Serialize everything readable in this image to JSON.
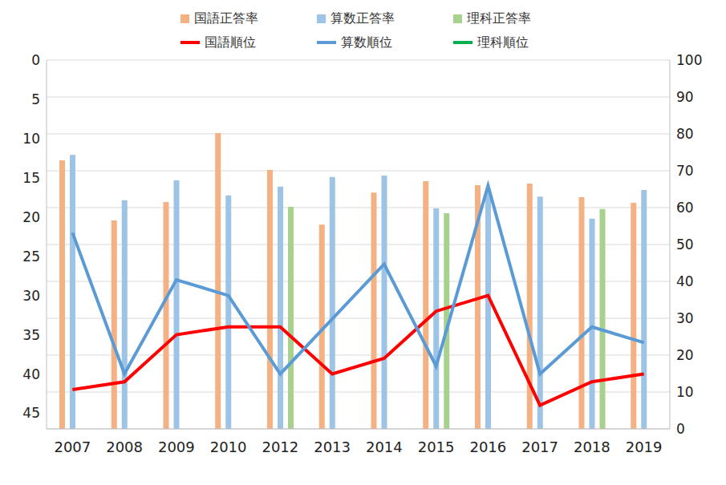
{
  "chart_data": {
    "type": "bar",
    "categories": [
      "2007",
      "2008",
      "2009",
      "2010",
      "2012",
      "2013",
      "2014",
      "2015",
      "2016",
      "2017",
      "2018",
      "2019"
    ],
    "ylim": [
      47,
      0
    ],
    "yticks": [
      0,
      5,
      10,
      15,
      20,
      25,
      30,
      35,
      40,
      45
    ],
    "y2lim": [
      0,
      100
    ],
    "y2ticks": [
      0,
      10,
      20,
      30,
      40,
      50,
      60,
      70,
      80,
      90,
      100
    ],
    "grid": true,
    "legend": "top",
    "series": [
      {
        "name": "国語正答率",
        "type": "bar",
        "axis": "y2",
        "color": "#F4B183",
        "values": [
          72.8,
          56.5,
          61.5,
          80.2,
          70.2,
          55.4,
          64.1,
          67.2,
          66.1,
          66.5,
          62.8,
          61.3
        ]
      },
      {
        "name": "算数正答率",
        "type": "bar",
        "axis": "y2",
        "color": "#9DC3E6",
        "values": [
          74.3,
          62.0,
          67.4,
          63.3,
          65.7,
          68.3,
          68.7,
          59.8,
          65.0,
          63.0,
          57.0,
          64.8
        ]
      },
      {
        "name": "理科正答率",
        "type": "bar",
        "axis": "y2",
        "color": "#A9D18E",
        "values": [
          null,
          null,
          null,
          null,
          60.2,
          null,
          null,
          58.5,
          null,
          null,
          59.6,
          null
        ]
      },
      {
        "name": "国語順位",
        "type": "line",
        "color": "#FF0000",
        "values": [
          42,
          41,
          35,
          34,
          34,
          40,
          38,
          32,
          30,
          44,
          41,
          40
        ]
      },
      {
        "name": "算数順位",
        "type": "line",
        "color": "#5B9BD5",
        "values": [
          22,
          40,
          28,
          30,
          40,
          33,
          26,
          39,
          16,
          40,
          34,
          36
        ]
      },
      {
        "name": "理科順位",
        "type": "line",
        "color": "#00B050",
        "values": [
          null,
          null,
          null,
          null,
          null,
          null,
          null,
          null,
          null,
          null,
          null,
          null
        ]
      }
    ]
  }
}
